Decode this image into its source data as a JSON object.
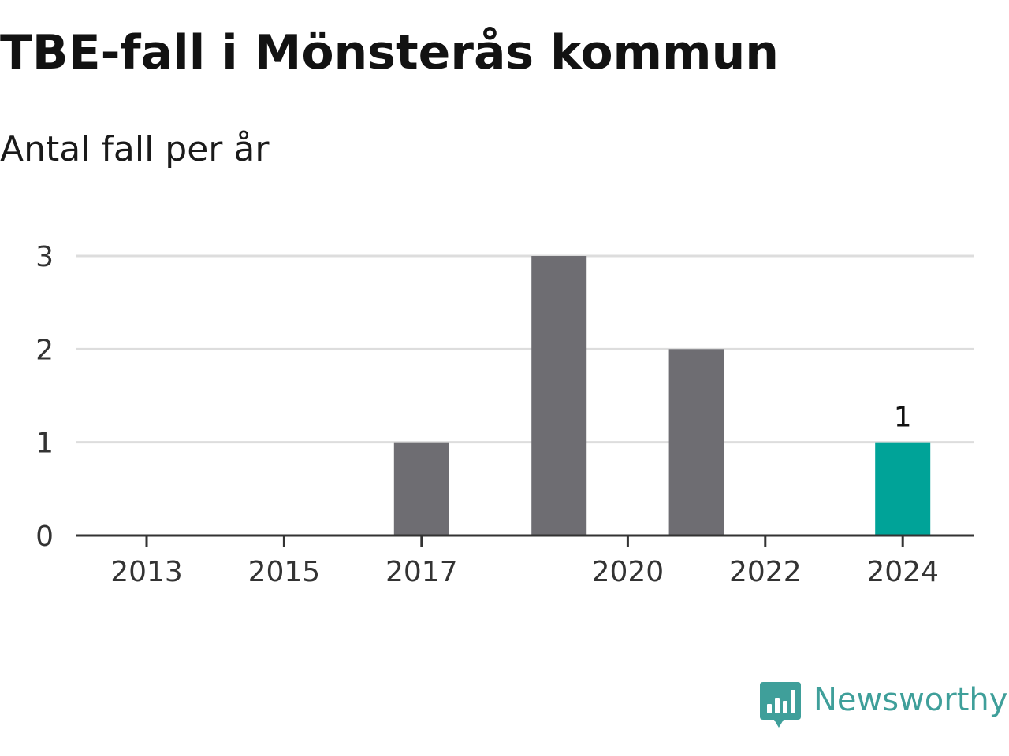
{
  "chart_data": {
    "type": "bar",
    "title": "TBE-fall i Mönsterås kommun",
    "subtitle": "Antal fall per år",
    "x": [
      2013,
      2014,
      2015,
      2016,
      2017,
      2018,
      2019,
      2020,
      2021,
      2022,
      2023,
      2024
    ],
    "values": [
      0,
      0,
      0,
      0,
      1,
      0,
      3,
      0,
      2,
      0,
      0,
      1
    ],
    "x_tick_labels": [
      "2013",
      "2015",
      "2017",
      "2020",
      "2022",
      "2024"
    ],
    "y_tick_labels": [
      "0",
      "1",
      "2",
      "3"
    ],
    "ylim": [
      0,
      3
    ],
    "grid": true,
    "highlight": {
      "x": 2024,
      "value_label": "1",
      "color": "#00a398"
    },
    "bar_color": "#6e6d72",
    "gridline_color": "#dddddd",
    "axis_color": "#333333"
  },
  "branding": {
    "name": "Newsworthy",
    "icon": "newsworthy-logo-icon",
    "color": "#3f9f9a"
  }
}
